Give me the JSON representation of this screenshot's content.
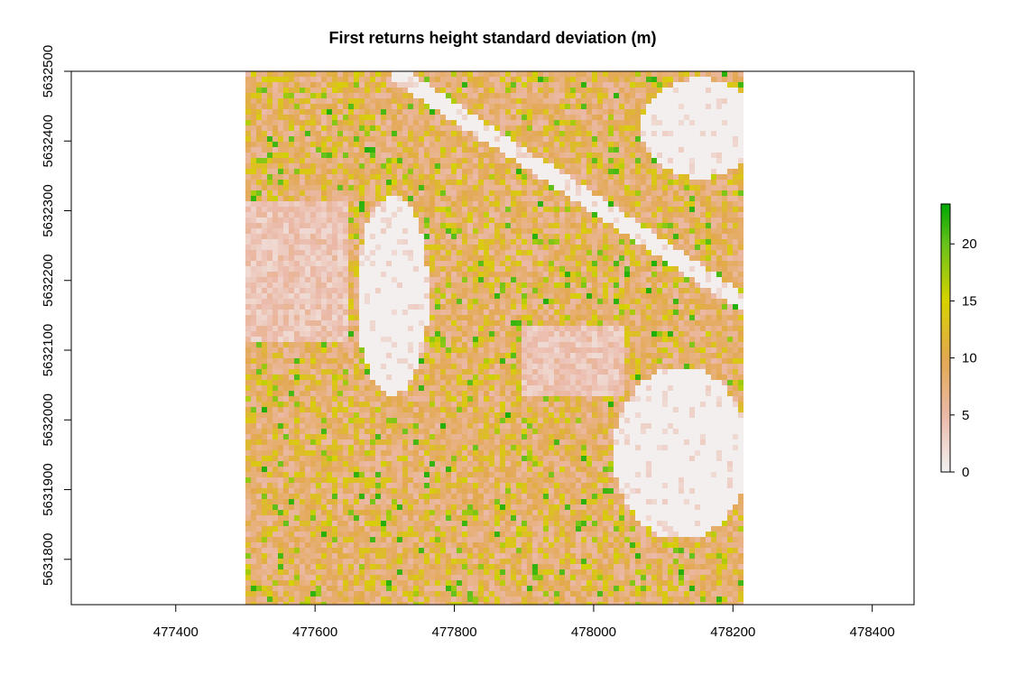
{
  "chart_data": {
    "type": "heatmap",
    "title": "First returns height standard deviation (m)",
    "xlabel": "",
    "ylabel": "",
    "xlim": [
      477250,
      478460
    ],
    "ylim": [
      5631735,
      5632500
    ],
    "x_ticks": [
      477400,
      477600,
      477800,
      478000,
      478200,
      478400
    ],
    "y_ticks": [
      5631800,
      5631900,
      5632000,
      5632100,
      5632200,
      5632300,
      5632400,
      5632500
    ],
    "raster_extent": {
      "xmin": 477500,
      "xmax": 478215,
      "ymin": 5631735,
      "ymax": 5632500
    },
    "colorbar": {
      "min": 0,
      "max": 23.5,
      "ticks": [
        0,
        5,
        10,
        15,
        20
      ],
      "stops": [
        {
          "value": 0,
          "color": "#f2f2f2"
        },
        {
          "value": 5,
          "color": "#ebb9a8"
        },
        {
          "value": 10,
          "color": "#e3a84f"
        },
        {
          "value": 15,
          "color": "#d7d200"
        },
        {
          "value": 20,
          "color": "#68c21b"
        },
        {
          "value": 23.5,
          "color": "#00a600"
        }
      ],
      "placement": "right"
    },
    "grid": false,
    "legend_placement": "right"
  }
}
